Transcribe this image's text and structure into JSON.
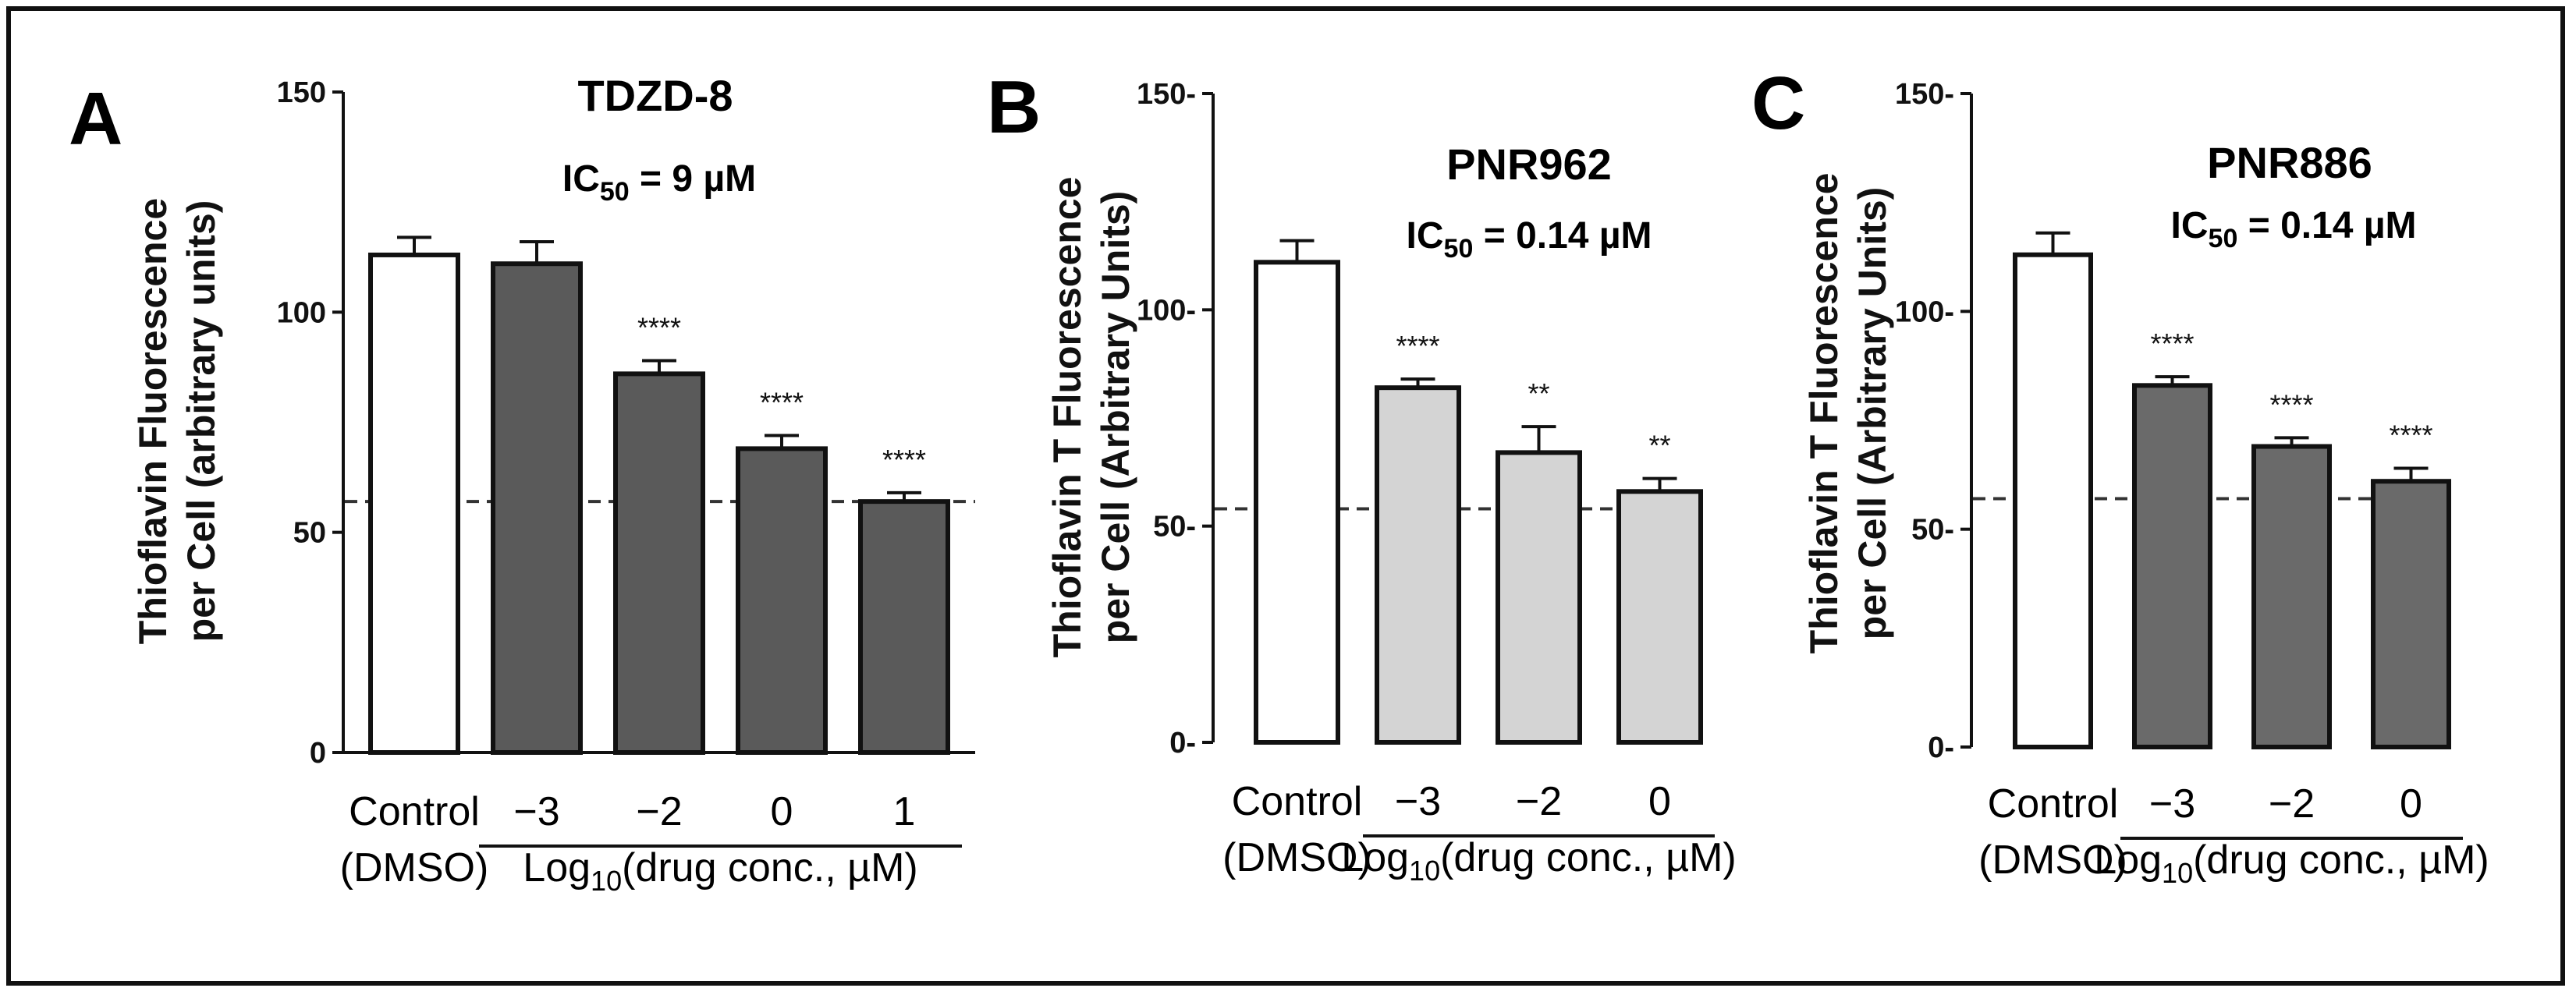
{
  "chart_data": [
    {
      "type": "bar",
      "panel": "A",
      "title": "TDZD-8",
      "ic50_prefix": "IC",
      "ic50_sub": "50",
      "ic50_value": " = 9 µM",
      "ylabel_line1": "Thioflavin Fluorescence",
      "ylabel_line2": "per Cell (arbitrary units)",
      "ylim": [
        0,
        150
      ],
      "yticks": [
        0,
        50,
        100,
        150
      ],
      "ytick_labels": [
        "0",
        "50",
        "100",
        "150"
      ],
      "control_line1": "Control",
      "control_line2": "(DMSO)",
      "group_label_prefix": "Log",
      "group_label_sub": "10",
      "group_label_suffix": "(drug conc., µM)",
      "categories": [
        "Control",
        "−3",
        "−2",
        "0",
        "1"
      ],
      "values": [
        113,
        111,
        86,
        69,
        57
      ],
      "errors": [
        4,
        5,
        3,
        3,
        2
      ],
      "significance": [
        "",
        "",
        "****",
        "****",
        "****"
      ],
      "reference_line": 57,
      "colors": [
        "#ffffff",
        "#5a5a5a",
        "#5a5a5a",
        "#5a5a5a",
        "#5a5a5a"
      ]
    },
    {
      "type": "bar",
      "panel": "B",
      "title": "PNR962",
      "ic50_prefix": "IC",
      "ic50_sub": "50",
      "ic50_value": " = 0.14 µM",
      "ylabel_line1": "Thioflavin T Fluorescence",
      "ylabel_line2": "per Cell (Arbitrary Units)",
      "ylim": [
        0,
        150
      ],
      "yticks": [
        0,
        50,
        100,
        150
      ],
      "ytick_labels": [
        "0-",
        "50-",
        "100-",
        "150-"
      ],
      "control_line1": "Control",
      "control_line2": "(DMSO)",
      "group_label_prefix": "Log",
      "group_label_sub": "10",
      "group_label_suffix": "(drug conc., µM)",
      "categories": [
        "Control",
        "−3",
        "−2",
        "0"
      ],
      "values": [
        111,
        82,
        67,
        58
      ],
      "errors": [
        5,
        2,
        6,
        3
      ],
      "significance": [
        "",
        "****",
        "**",
        "**"
      ],
      "reference_line": 54,
      "colors": [
        "#ffffff",
        "#d4d4d4",
        "#d4d4d4",
        "#d4d4d4"
      ]
    },
    {
      "type": "bar",
      "panel": "C",
      "title": "PNR886",
      "ic50_prefix": "IC",
      "ic50_sub": "50",
      "ic50_value": " = 0.14 µM",
      "ylabel_line1": "Thioflavin T Fluorescence",
      "ylabel_line2": "per Cell (Arbitrary Units)",
      "ylim": [
        0,
        150
      ],
      "yticks": [
        0,
        50,
        100,
        150
      ],
      "ytick_labels": [
        "0-",
        "50-",
        "100-",
        "150-"
      ],
      "control_line1": "Control",
      "control_line2": "(DMSO)",
      "group_label_prefix": "Log",
      "group_label_sub": "10",
      "group_label_suffix": "(drug conc., µM)",
      "categories": [
        "Control",
        "−3",
        "−2",
        "0"
      ],
      "values": [
        113,
        83,
        69,
        61
      ],
      "errors": [
        5,
        2,
        2,
        3
      ],
      "significance": [
        "",
        "****",
        "****",
        "****"
      ],
      "reference_line": 57,
      "colors": [
        "#ffffff",
        "#6a6a6a",
        "#6a6a6a",
        "#6a6a6a"
      ]
    }
  ]
}
